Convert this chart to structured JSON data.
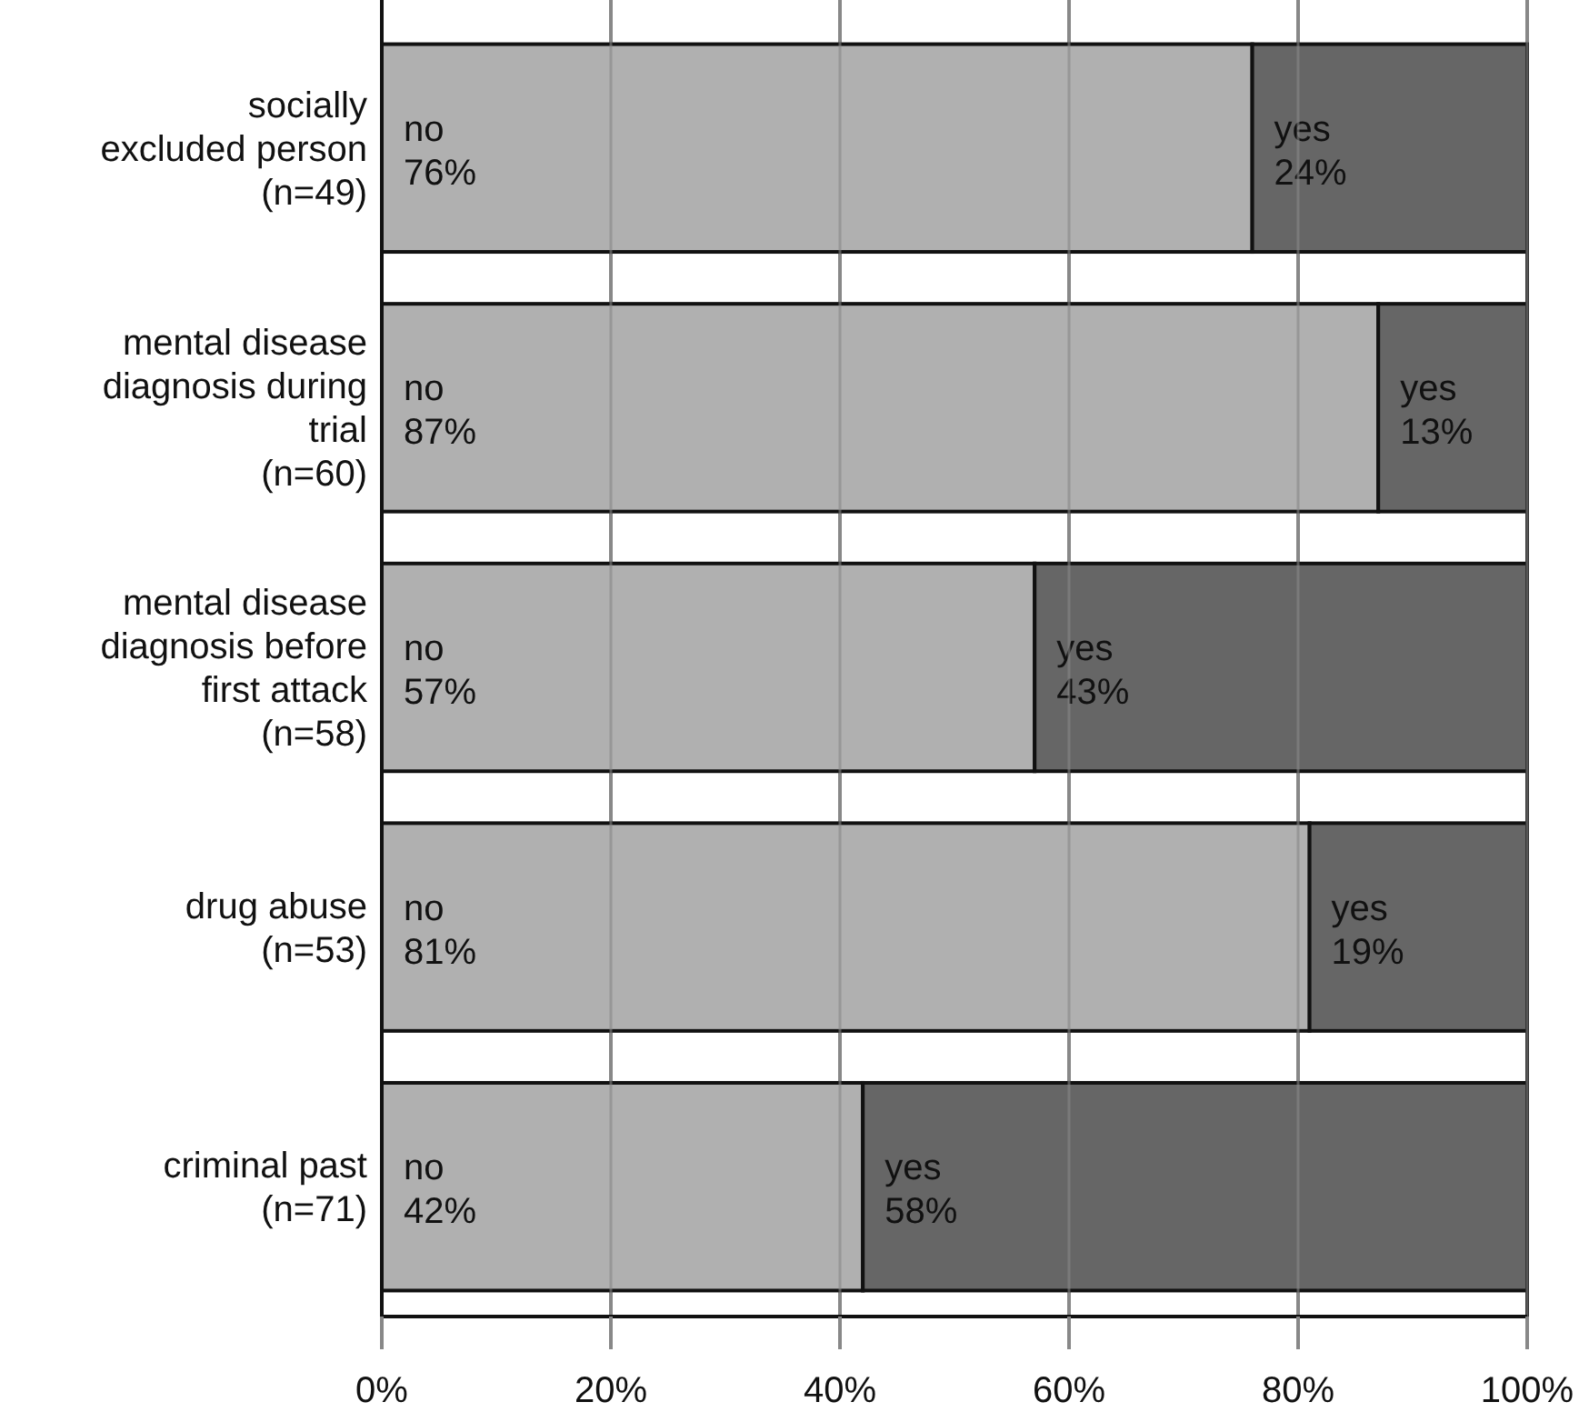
{
  "chart_data": {
    "type": "bar",
    "orientation": "horizontal",
    "stacked": true,
    "categories": [
      "socially\nexcluded person\n(n=49)",
      "mental disease\ndiagnosis during\ntrial\n(n=60)",
      "mental disease\ndiagnosis before\nfirst attack\n(n=58)",
      "drug abuse\n(n=53)",
      "criminal past\n(n=71)"
    ],
    "series": [
      {
        "name": "no",
        "color": "#b0b0b0",
        "values": [
          76,
          87,
          57,
          81,
          42
        ],
        "value_labels": [
          "76%",
          "87%",
          "57%",
          "81%",
          "42%"
        ]
      },
      {
        "name": "yes",
        "color": "#666666",
        "values": [
          24,
          13,
          43,
          19,
          58
        ],
        "value_labels": [
          "24%",
          "13%",
          "43%",
          "19%",
          "58%"
        ]
      }
    ],
    "xlim": [
      0,
      100
    ],
    "xticks": [
      {
        "value": 0,
        "label": "0%"
      },
      {
        "value": 20,
        "label": "20%"
      },
      {
        "value": 40,
        "label": "40%"
      },
      {
        "value": 60,
        "label": "60%"
      },
      {
        "value": 80,
        "label": "80%"
      },
      {
        "value": 100,
        "label": "100%"
      }
    ],
    "grid": "x"
  }
}
